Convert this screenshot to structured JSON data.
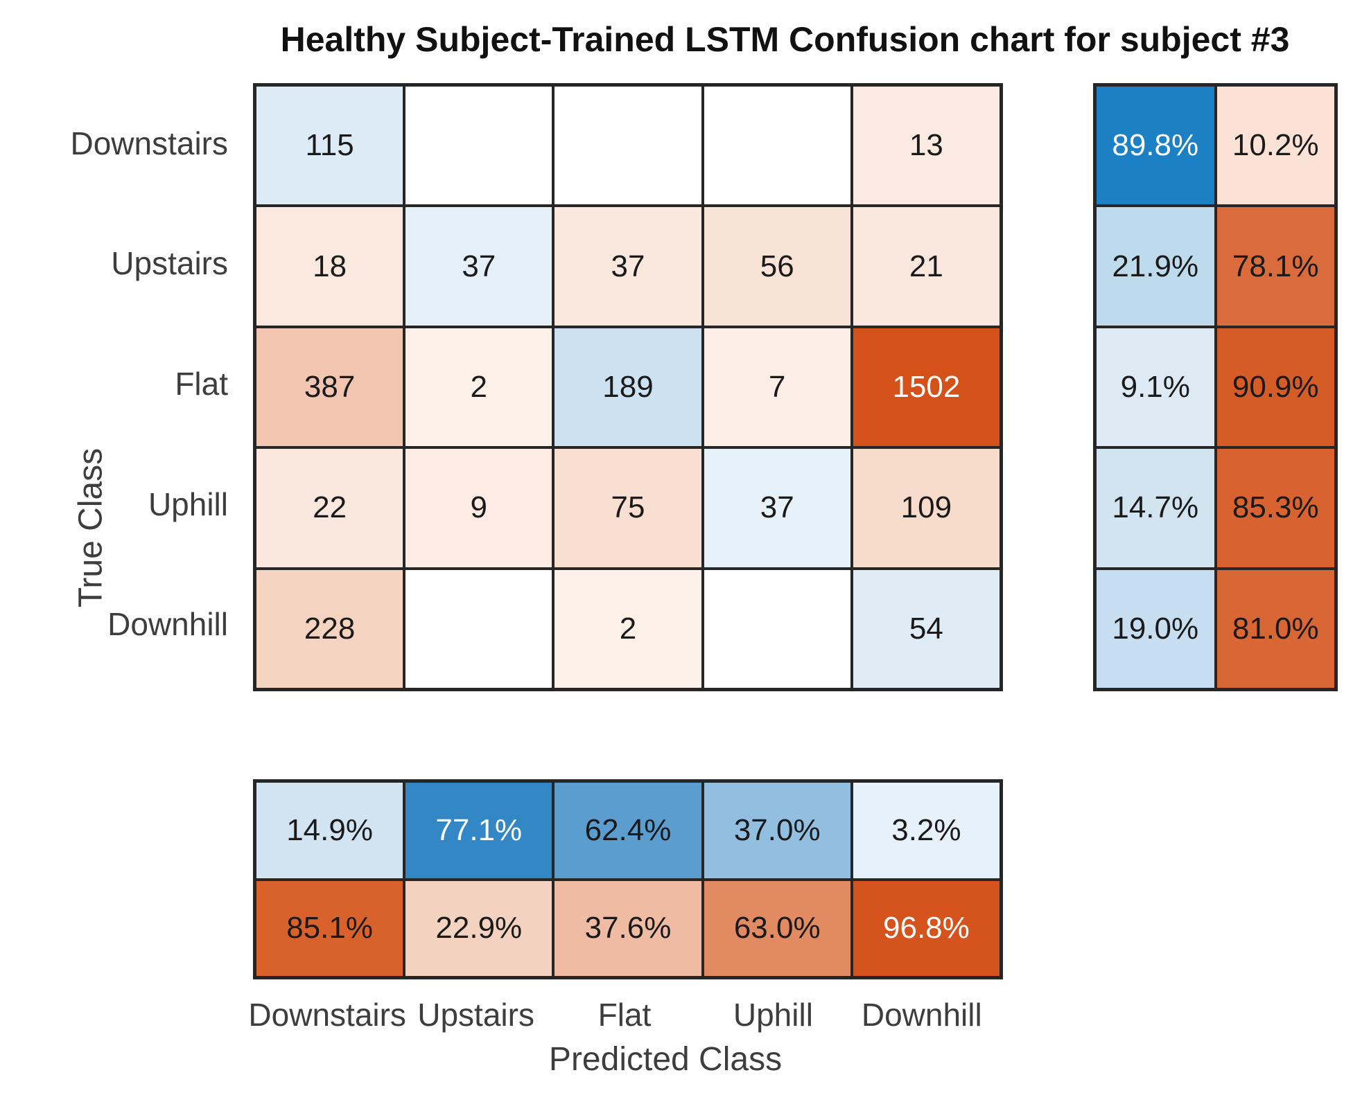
{
  "title": "Healthy Subject-Trained LSTM Confusion chart for subject #3",
  "chart_data": {
    "type": "heatmap",
    "subtype": "confusion-matrix",
    "title": "Healthy Subject-Trained LSTM Confusion chart for subject #3",
    "xlabel": "Predicted Class",
    "ylabel": "True Class",
    "categories": [
      "Downstairs",
      "Upstairs",
      "Flat",
      "Uphill",
      "Downhill"
    ],
    "matrix": [
      [
        115,
        null,
        null,
        null,
        13
      ],
      [
        18,
        37,
        37,
        56,
        21
      ],
      [
        387,
        2,
        189,
        7,
        1502
      ],
      [
        22,
        9,
        75,
        37,
        109
      ],
      [
        228,
        null,
        2,
        null,
        54
      ]
    ],
    "row_summary_percent": [
      [
        89.8,
        10.2
      ],
      [
        21.9,
        78.1
      ],
      [
        9.1,
        90.9
      ],
      [
        14.7,
        85.3
      ],
      [
        19.0,
        81.0
      ]
    ],
    "col_summary_percent": [
      [
        14.9,
        77.1,
        62.4,
        37.0,
        3.2
      ],
      [
        85.1,
        22.9,
        37.6,
        63.0,
        96.8
      ]
    ],
    "legend": "none",
    "grid": "on"
  },
  "presentation": {
    "diagonal_base_color": "#1b80c4",
    "offdiagonal_base_color": "#d5511a",
    "grid_line_color": "#262626",
    "cell_text_dark": "#1a1a1a",
    "cell_text_light": "#ffffff",
    "axis_text_color": "#3d3d3d",
    "main_bg": [
      [
        "#dcebf5",
        "#ffffff",
        "#ffffff",
        "#ffffff",
        "#fcebe2"
      ],
      [
        "#fbe9e0",
        "#e5eff8",
        "#fae7dd",
        "#f9e3d6",
        "#fae8df"
      ],
      [
        "#f2c6b1",
        "#fdf1ea",
        "#cce1f1",
        "#fdefe7",
        "#d5511a"
      ],
      [
        "#fae8de",
        "#fcece4",
        "#f8dfd2",
        "#e7f1f9",
        "#f7dccc"
      ],
      [
        "#f5d3c1",
        "#ffffff",
        "#fdf0e9",
        "#ffffff",
        "#dfecf6"
      ]
    ],
    "row_summary_bg": [
      [
        "#1b80c4",
        "#fae3d6"
      ],
      [
        "#bedaed",
        "#d96b3c"
      ],
      [
        "#ddeaf4",
        "#d55c26"
      ],
      [
        "#d3e4f1",
        "#d86230"
      ],
      [
        "#c7def0",
        "#d96635"
      ]
    ],
    "col_summary_bg": [
      [
        "#d2e4f1",
        "#3387c5",
        "#5b9dcf",
        "#92bfdf",
        "#e7f1f9"
      ],
      [
        "#d8612c",
        "#f4d2c0",
        "#efbba3",
        "#e28a61",
        "#d5541e"
      ]
    ],
    "light_text_cells": {
      "main": [
        [
          2,
          4
        ]
      ],
      "row_summary": [
        [
          0,
          0
        ]
      ],
      "col_summary": [
        [
          0,
          1
        ],
        [
          1,
          4
        ]
      ]
    }
  }
}
